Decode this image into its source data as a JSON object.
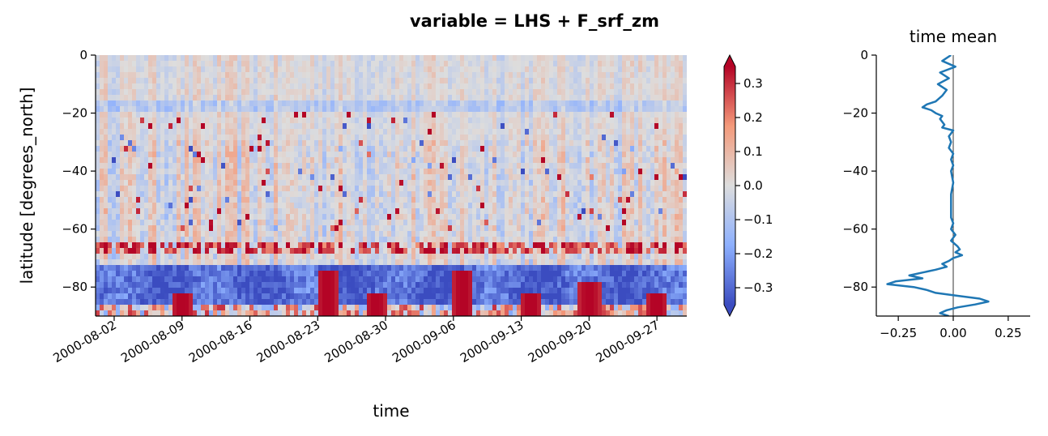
{
  "figure": {
    "title": "variable = LHS + F_srf_zm"
  },
  "chart_data": [
    {
      "type": "heatmap",
      "xlabel": "time",
      "ylabel": "latitude [degrees_north]",
      "x_range": [
        "2000-08-01",
        "2000-09-30"
      ],
      "ylim": [
        -90,
        0
      ],
      "x_ticks": [
        "2000-08-02",
        "2000-08-09",
        "2000-08-16",
        "2000-08-23",
        "2000-08-30",
        "2000-09-06",
        "2000-09-13",
        "2000-09-20",
        "2000-09-27"
      ],
      "y_ticks": [
        0,
        -20,
        -40,
        -60,
        -80
      ],
      "colormap": "coolwarm",
      "colorbar": {
        "vmin": -0.35,
        "vmax": 0.35,
        "extend": "both",
        "ticks": [
          0.3,
          0.2,
          0.1,
          0.0,
          -0.1,
          -0.2,
          -0.3
        ],
        "tick_labels": [
          "0.3",
          "0.2",
          "0.1",
          "0.0",
          "−0.1",
          "−0.2",
          "−0.3"
        ]
      },
      "features": {
        "strong_negative_band_latitudes": [
          -86,
          -72
        ],
        "positive_band_latitude": -67,
        "negative_line_latitude": -18,
        "positive_bursts": [
          {
            "date": "2000-08-09",
            "lat_range": [
              -90,
              -82
            ]
          },
          {
            "date": "2000-08-24",
            "lat_range": [
              -90,
              -75
            ]
          },
          {
            "date": "2000-08-29",
            "lat_range": [
              -90,
              -82
            ]
          },
          {
            "date": "2000-09-07",
            "lat_range": [
              -90,
              -75
            ]
          },
          {
            "date": "2000-09-14",
            "lat_range": [
              -90,
              -82
            ]
          },
          {
            "date": "2000-09-20",
            "lat_range": [
              -90,
              -78
            ]
          },
          {
            "date": "2000-09-27",
            "lat_range": [
              -90,
              -82
            ]
          }
        ]
      }
    },
    {
      "type": "line",
      "title": "time mean",
      "xlim": [
        -0.35,
        0.35
      ],
      "ylim": [
        -90,
        0
      ],
      "x_ticks": [
        -0.25,
        0.0,
        0.25
      ],
      "x_tick_labels": [
        "−0.25",
        "0.00",
        "0.25"
      ],
      "y_ticks": [
        0,
        -20,
        -40,
        -60,
        -80
      ],
      "reference_line_x": 0,
      "series": [
        {
          "color": "#1f77b4",
          "points": [
            {
              "lat": 0,
              "value": -0.01
            },
            {
              "lat": -2,
              "value": -0.05
            },
            {
              "lat": -4,
              "value": 0.01
            },
            {
              "lat": -6,
              "value": -0.06
            },
            {
              "lat": -8,
              "value": -0.02
            },
            {
              "lat": -10,
              "value": -0.07
            },
            {
              "lat": -12,
              "value": -0.03
            },
            {
              "lat": -14,
              "value": -0.05
            },
            {
              "lat": -16,
              "value": -0.08
            },
            {
              "lat": -17,
              "value": -0.12
            },
            {
              "lat": -18,
              "value": -0.14
            },
            {
              "lat": -19,
              "value": -0.1
            },
            {
              "lat": -20,
              "value": -0.08
            },
            {
              "lat": -21,
              "value": -0.05
            },
            {
              "lat": -22,
              "value": -0.06
            },
            {
              "lat": -24,
              "value": -0.04
            },
            {
              "lat": -25,
              "value": -0.05
            },
            {
              "lat": -26,
              "value": 0.0
            },
            {
              "lat": -28,
              "value": -0.02
            },
            {
              "lat": -30,
              "value": -0.01
            },
            {
              "lat": -32,
              "value": -0.02
            },
            {
              "lat": -34,
              "value": 0.0
            },
            {
              "lat": -36,
              "value": -0.01
            },
            {
              "lat": -38,
              "value": 0.0
            },
            {
              "lat": -40,
              "value": -0.01
            },
            {
              "lat": -44,
              "value": 0.0
            },
            {
              "lat": -48,
              "value": -0.01
            },
            {
              "lat": -52,
              "value": -0.01
            },
            {
              "lat": -56,
              "value": -0.01
            },
            {
              "lat": -58,
              "value": 0.0
            },
            {
              "lat": -60,
              "value": -0.01
            },
            {
              "lat": -62,
              "value": 0.01
            },
            {
              "lat": -64,
              "value": -0.01
            },
            {
              "lat": -66,
              "value": 0.02
            },
            {
              "lat": -67,
              "value": 0.03
            },
            {
              "lat": -68,
              "value": 0.01
            },
            {
              "lat": -69,
              "value": 0.04
            },
            {
              "lat": -70,
              "value": 0.0
            },
            {
              "lat": -71,
              "value": -0.02
            },
            {
              "lat": -72,
              "value": -0.05
            },
            {
              "lat": -73,
              "value": -0.03
            },
            {
              "lat": -74,
              "value": -0.08
            },
            {
              "lat": -75,
              "value": -0.14
            },
            {
              "lat": -76,
              "value": -0.2
            },
            {
              "lat": -77,
              "value": -0.14
            },
            {
              "lat": -78,
              "value": -0.26
            },
            {
              "lat": -79,
              "value": -0.3
            },
            {
              "lat": -80,
              "value": -0.18
            },
            {
              "lat": -81,
              "value": -0.12
            },
            {
              "lat": -82,
              "value": -0.08
            },
            {
              "lat": -83,
              "value": 0.02
            },
            {
              "lat": -84,
              "value": 0.12
            },
            {
              "lat": -85,
              "value": 0.16
            },
            {
              "lat": -86,
              "value": 0.1
            },
            {
              "lat": -87,
              "value": 0.02
            },
            {
              "lat": -88,
              "value": -0.03
            },
            {
              "lat": -89,
              "value": -0.06
            },
            {
              "lat": -90,
              "value": -0.02
            }
          ]
        }
      ]
    }
  ]
}
